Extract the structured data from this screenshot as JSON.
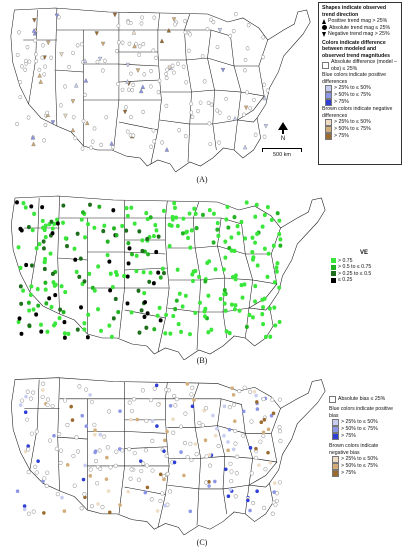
{
  "panels": [
    {
      "label": "(A)"
    },
    {
      "label": "(B)"
    },
    {
      "label": "(C)"
    }
  ],
  "legend_a": {
    "title_shapes": "Shapes indicate observed trend direction",
    "pos_trend": "Positive trend mag > 25%",
    "abs_trend": "Absolute trend mag ≤ 25%",
    "neg_trend": "Negative trend mag > 25%",
    "title_colors": "Colors indicate difference between modeled and observed trend magnitudes",
    "abs_diff": "Absolute difference (model – obs) ≤ 25%",
    "blue_head": "Blue colors indicate positive differences",
    "blue_1": "> 25% to ≤ 50%",
    "blue_2": "> 50% to ≤ 75%",
    "blue_3": "> 75%",
    "brown_head": "Brown colors indicate negative differences",
    "brown_1": "> 25% to ≤ 50%",
    "brown_2": "> 50% to ≤ 75%",
    "brown_3": "> 75%",
    "north": "N",
    "scale": "500 km"
  },
  "legend_b": {
    "title": "VE",
    "c1": "> 0.75",
    "c2": "> 0.5 to ≤ 0.75",
    "c3": "> 0.25 to ≤ 0.5",
    "c4": "≤ 0.25"
  },
  "legend_c": {
    "abs_bias": "Absolute bias ≤ 25%",
    "blue_head": "Blue colors indicate positive bias",
    "blue_1": "> 25% to ≤ 50%",
    "blue_2": "> 50% to ≤ 75%",
    "blue_3": "> 75%",
    "brown_head": "Brown colors indicate negative bias",
    "brown_1": "> 25% to ≤ 50%",
    "brown_2": "> 50% to ≤ 75%",
    "brown_3": "> 75%"
  },
  "colors": {
    "blue_1": "#c7cdf0",
    "blue_2": "#8b96e6",
    "blue_3": "#2f3fd6",
    "brown_1": "#efdcc4",
    "brown_2": "#d2ad7a",
    "brown_3": "#9a6a2e",
    "gray": "#9a9a9a",
    "ve_1": "#39e639",
    "ve_2": "#22b322",
    "ve_3": "#1e6e1e",
    "ve_4": "#000000"
  }
}
